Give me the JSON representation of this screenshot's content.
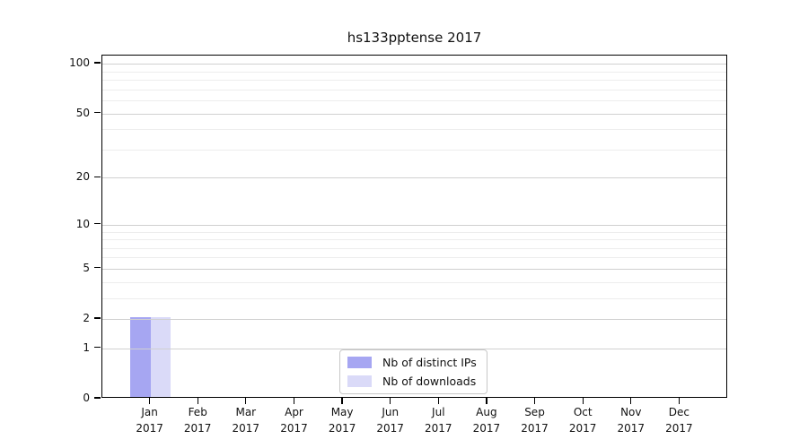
{
  "chart_data": {
    "type": "bar",
    "title": "hs133pptense 2017",
    "categories": [
      "Jan",
      "Feb",
      "Mar",
      "Apr",
      "May",
      "Jun",
      "Jul",
      "Aug",
      "Sep",
      "Oct",
      "Nov",
      "Dec"
    ],
    "x_tick_second_line": "2017",
    "series": [
      {
        "name": "Nb of distinct IPs",
        "color": "#a6a6f2",
        "values": [
          2,
          0,
          0,
          0,
          0,
          0,
          0,
          0,
          0,
          0,
          0,
          0
        ]
      },
      {
        "name": "Nb of downloads",
        "color": "#dadaf8",
        "values": [
          2,
          0,
          0,
          0,
          0,
          0,
          0,
          0,
          0,
          0,
          0,
          0
        ]
      }
    ],
    "yscale": "log1p",
    "ylim": [
      0,
      112
    ],
    "yticks": [
      0,
      1,
      2,
      5,
      10,
      20,
      50,
      100
    ],
    "minor_gridlines": [
      3,
      4,
      6,
      7,
      8,
      9,
      30,
      40,
      60,
      70,
      80,
      90
    ],
    "grid": true,
    "legend_position": "lower center",
    "colors": {
      "major_grid": "#d0d0d0",
      "minor_grid": "#ededed",
      "axis": "#000000",
      "background": "#ffffff"
    }
  }
}
